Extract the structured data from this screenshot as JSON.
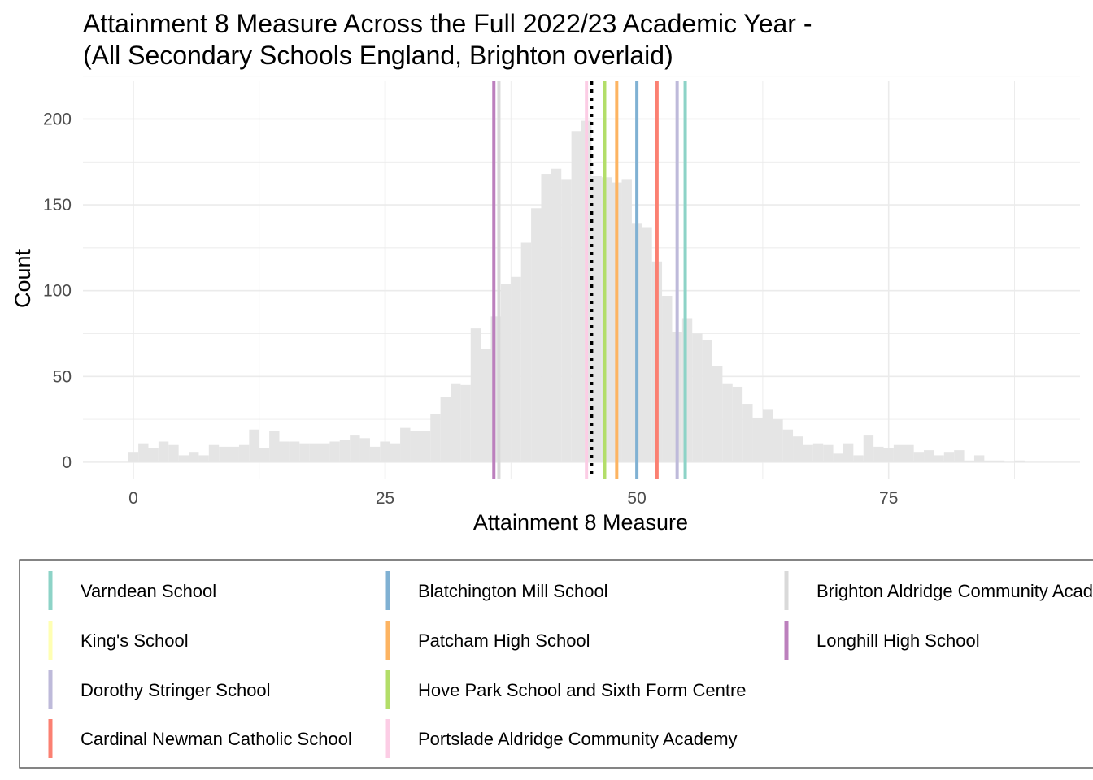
{
  "chart_data": {
    "type": "bar",
    "title": "Attainment 8 Measure Across the Full 2022/23 Academic Year -",
    "subtitle": "(All Secondary Schools England, Brighton overlaid)",
    "xlabel": "Attainment 8 Measure",
    "ylabel": "Count",
    "xlim": [
      -5,
      94
    ],
    "ylim": [
      -10,
      222
    ],
    "x_ticks": [
      0,
      25,
      50,
      75
    ],
    "y_ticks": [
      0,
      50,
      100,
      150,
      200
    ],
    "x_tick_labels": [
      "0",
      "25",
      "50",
      "75"
    ],
    "y_tick_labels": [
      "0",
      "50",
      "100",
      "150",
      "200"
    ],
    "grid": true,
    "bar_color": "#e5e5e5",
    "bin_width": 1,
    "bins_x": [
      0,
      1,
      2,
      3,
      4,
      5,
      6,
      7,
      8,
      9,
      10,
      11,
      12,
      13,
      14,
      15,
      16,
      17,
      18,
      19,
      20,
      21,
      22,
      23,
      24,
      25,
      26,
      27,
      28,
      29,
      30,
      31,
      32,
      33,
      34,
      35,
      36,
      37,
      38,
      39,
      40,
      41,
      42,
      43,
      44,
      45,
      46,
      47,
      48,
      49,
      50,
      51,
      52,
      53,
      54,
      55,
      56,
      57,
      58,
      59,
      60,
      61,
      62,
      63,
      64,
      65,
      66,
      67,
      68,
      69,
      70,
      71,
      72,
      73,
      74,
      75,
      76,
      77,
      78,
      79,
      80,
      81,
      82,
      83,
      84,
      85,
      86,
      87,
      88,
      89
    ],
    "counts": [
      6,
      11,
      8,
      12,
      10,
      4,
      6,
      4,
      10,
      9,
      9,
      10,
      19,
      8,
      18,
      12,
      12,
      11,
      11,
      11,
      12,
      13,
      16,
      14,
      9,
      12,
      11,
      20,
      18,
      18,
      28,
      38,
      46,
      45,
      78,
      66,
      85,
      104,
      108,
      128,
      148,
      168,
      171,
      165,
      193,
      199,
      167,
      166,
      163,
      165,
      139,
      137,
      117,
      97,
      76,
      84,
      75,
      71,
      56,
      46,
      44,
      34,
      26,
      31,
      25,
      19,
      15,
      10,
      11,
      10,
      5,
      11,
      4,
      16,
      9,
      8,
      10,
      10,
      6,
      7,
      4,
      6,
      7,
      1,
      4,
      1,
      1,
      0,
      1,
      0
    ],
    "reference_lines": [
      {
        "x": 45.5,
        "color": "#000000",
        "style": "dotted"
      }
    ],
    "schools": [
      {
        "name": "Varndean School",
        "x": 54.8,
        "color": "#8dd3c7"
      },
      {
        "name": "King's School",
        "x": null,
        "color": "#ffffb3"
      },
      {
        "name": "Dorothy Stringer School",
        "x": 54.0,
        "color": "#bebada"
      },
      {
        "name": "Cardinal Newman Catholic School",
        "x": 52.0,
        "color": "#fb8072"
      },
      {
        "name": "Blatchington Mill School",
        "x": 50.0,
        "color": "#80b1d3"
      },
      {
        "name": "Patcham High School",
        "x": 48.0,
        "color": "#fdb462"
      },
      {
        "name": "Hove Park School and Sixth Form Centre",
        "x": 46.8,
        "color": "#b3de69"
      },
      {
        "name": "Portslade Aldridge Community Academy",
        "x": 45.0,
        "color": "#fccde5"
      },
      {
        "name": "Brighton Aldridge Community Academy",
        "x": 36.3,
        "color": "#d9d9d9"
      },
      {
        "name": "Longhill High School",
        "x": 35.8,
        "color": "#bc80bd"
      }
    ],
    "legend_position": "bottom",
    "legend_columns": [
      [
        "Varndean School",
        "King's School",
        "Dorothy Stringer School",
        "Cardinal Newman Catholic School"
      ],
      [
        "Blatchington Mill School",
        "Patcham High School",
        "Hove Park School and Sixth Form Centre",
        "Portslade Aldridge Community Academy"
      ],
      [
        "Brighton Aldridge Community Academy",
        "Longhill High School"
      ]
    ]
  }
}
